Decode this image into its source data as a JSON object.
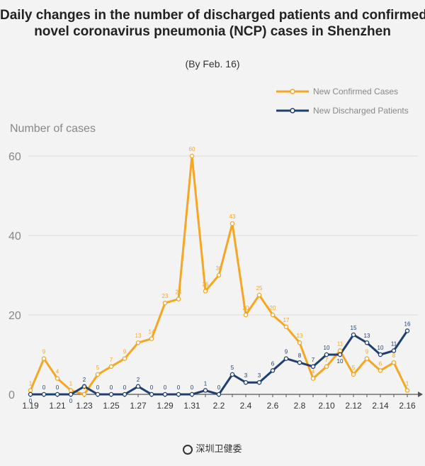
{
  "chart_data": {
    "type": "line",
    "title_lines": [
      "Daily changes in the number of discharged patients and confirmed",
      "novel coronavirus pneumonia (NCP) cases in Shenzhen"
    ],
    "subtitle": "(By Feb. 16)",
    "ylabel": "Number of cases",
    "ylim": [
      0,
      65
    ],
    "yticks": [
      0,
      20,
      40,
      60
    ],
    "x": [
      "1.19",
      "1.20",
      "1.21",
      "1.22",
      "1.23",
      "1.24",
      "1.25",
      "1.26",
      "1.27",
      "1.28",
      "1.29",
      "1.30",
      "1.31",
      "2.1",
      "2.2",
      "2.3",
      "2.4",
      "2.5",
      "2.6",
      "2.7",
      "2.8",
      "2.9",
      "2.10",
      "2.11",
      "2.12",
      "2.13",
      "2.14",
      "2.15",
      "2.16"
    ],
    "xticks": [
      "1.19",
      "1.21",
      "1.23",
      "1.25",
      "1.27",
      "1.29",
      "1.31",
      "2.2",
      "2.4",
      "2.6",
      "2.8",
      "2.10",
      "2.12",
      "2.14",
      "2.16"
    ],
    "legend_position": "top-right",
    "series": [
      {
        "name": "New Confirmed Cases",
        "color": "#f5a623",
        "values": [
          1,
          9,
          4,
          1,
          0,
          5,
          7,
          9,
          13,
          14,
          23,
          24,
          60,
          26,
          30,
          43,
          20,
          25,
          20,
          17,
          13,
          4,
          7,
          11,
          5,
          9,
          6,
          8,
          1
        ]
      },
      {
        "name": "New Discharged Patients",
        "color": "#1f3f6e",
        "values": [
          0,
          0,
          0,
          0,
          2,
          0,
          0,
          0,
          2,
          0,
          0,
          0,
          0,
          1,
          0,
          5,
          3,
          3,
          6,
          9,
          8,
          7,
          10,
          10,
          15,
          13,
          10,
          11,
          16
        ]
      }
    ]
  },
  "footer": {
    "source": "深圳卫健委"
  }
}
